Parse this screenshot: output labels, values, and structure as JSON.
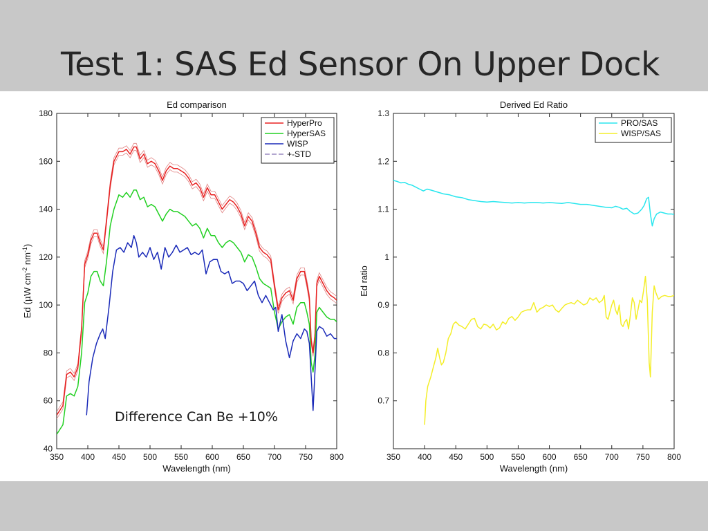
{
  "slide": {
    "title": "Test 1: SAS Ed Sensor On Upper Dock",
    "annotation": "Difference Can Be +10%"
  },
  "chart_data": [
    {
      "type": "line",
      "title": "Ed comparison",
      "xlabel": "Wavelength (nm)",
      "ylabel": "Ed (μW cm⁻² nm⁻¹)",
      "ylabel_parts": [
        "Ed (",
        "μ",
        "W cm",
        "-2",
        " nm",
        "-1",
        ")"
      ],
      "xlim": [
        350,
        800
      ],
      "ylim": [
        40,
        180
      ],
      "xticks": [
        350,
        400,
        450,
        500,
        550,
        600,
        650,
        700,
        750,
        800
      ],
      "yticks": [
        40,
        60,
        80,
        100,
        120,
        140,
        160,
        180
      ],
      "grid": false,
      "legend_position": "top-right",
      "legend": [
        {
          "name": "HyperPro",
          "color": "#e82020",
          "dash": false
        },
        {
          "name": "HyperSAS",
          "color": "#22d022",
          "dash": false
        },
        {
          "name": "WISP",
          "color": "#1a2ab8",
          "dash": false
        },
        {
          "name": "+-STD",
          "color": "#9a8ac0",
          "dash": true
        }
      ],
      "series": [
        {
          "name": "HyperPro",
          "color": "#e82020",
          "std": 1.5,
          "std_color": "#e08080",
          "x": [
            350,
            360,
            366,
            372,
            378,
            384,
            390,
            395,
            400,
            405,
            410,
            415,
            420,
            425,
            430,
            436,
            442,
            450,
            456,
            462,
            468,
            474,
            478,
            484,
            490,
            496,
            502,
            508,
            514,
            520,
            526,
            532,
            538,
            544,
            550,
            556,
            562,
            568,
            574,
            580,
            586,
            592,
            598,
            604,
            610,
            616,
            622,
            628,
            634,
            640,
            646,
            652,
            658,
            664,
            670,
            676,
            682,
            688,
            694,
            700,
            706,
            712,
            718,
            724,
            730,
            736,
            742,
            748,
            752,
            756,
            759,
            762,
            765,
            768,
            772,
            778,
            784,
            790,
            796,
            800
          ],
          "y": [
            54,
            58,
            71,
            72,
            70,
            74,
            90,
            117,
            121,
            127,
            130,
            130,
            126,
            123,
            135,
            150,
            160,
            164,
            164,
            165,
            163,
            166,
            166,
            161,
            163,
            159,
            160,
            159,
            156,
            152,
            156,
            158,
            157,
            157,
            156,
            155,
            153,
            150,
            151,
            149,
            145,
            149,
            146,
            146,
            143,
            140,
            142,
            144,
            143,
            141,
            138,
            133,
            137,
            135,
            130,
            124,
            122,
            121,
            119,
            108,
            98,
            103,
            105,
            106,
            102,
            111,
            114,
            114,
            109,
            103,
            85,
            80,
            87,
            109,
            112,
            109,
            106,
            104,
            103,
            102
          ]
        },
        {
          "name": "HyperSAS",
          "color": "#22d022",
          "x": [
            350,
            360,
            366,
            372,
            378,
            384,
            390,
            395,
            400,
            405,
            410,
            415,
            420,
            425,
            430,
            436,
            442,
            450,
            456,
            462,
            468,
            474,
            478,
            484,
            490,
            496,
            502,
            508,
            514,
            520,
            526,
            532,
            538,
            544,
            550,
            556,
            562,
            568,
            574,
            580,
            586,
            592,
            598,
            604,
            610,
            616,
            622,
            628,
            634,
            640,
            646,
            652,
            658,
            664,
            670,
            676,
            682,
            688,
            694,
            700,
            706,
            712,
            718,
            724,
            730,
            736,
            742,
            748,
            752,
            756,
            759,
            762,
            765,
            768,
            772,
            778,
            784,
            790,
            796,
            800
          ],
          "y": [
            46,
            50,
            62,
            63,
            62,
            66,
            80,
            101,
            105,
            112,
            114,
            114,
            110,
            108,
            118,
            133,
            140,
            146,
            145,
            147,
            145,
            148,
            148,
            144,
            145,
            141,
            142,
            141,
            138,
            135,
            138,
            140,
            139,
            139,
            138,
            137,
            135,
            133,
            134,
            132,
            128,
            132,
            129,
            129,
            126,
            124,
            126,
            127,
            126,
            124,
            122,
            118,
            121,
            120,
            116,
            111,
            109,
            108,
            107,
            97,
            90,
            93,
            95,
            96,
            92,
            99,
            101,
            101,
            97,
            92,
            76,
            72,
            79,
            97,
            99,
            97,
            95,
            94,
            94,
            93
          ]
        },
        {
          "name": "WISP",
          "color": "#1a2ab8",
          "x": [
            398,
            402,
            408,
            414,
            420,
            424,
            428,
            434,
            440,
            446,
            452,
            458,
            464,
            470,
            474,
            478,
            482,
            488,
            494,
            500,
            506,
            512,
            518,
            524,
            530,
            536,
            542,
            548,
            554,
            560,
            566,
            572,
            578,
            584,
            590,
            596,
            602,
            608,
            614,
            620,
            626,
            632,
            638,
            644,
            650,
            656,
            662,
            668,
            674,
            680,
            686,
            692,
            698,
            702,
            706,
            712,
            718,
            724,
            730,
            736,
            742,
            748,
            752,
            756,
            759,
            762,
            765,
            768,
            772,
            778,
            784,
            790,
            796,
            800
          ],
          "y": [
            54,
            68,
            78,
            84,
            88,
            90,
            86,
            99,
            114,
            123,
            124,
            122,
            126,
            124,
            129,
            126,
            120,
            122,
            120,
            124,
            119,
            122,
            115,
            124,
            120,
            122,
            125,
            122,
            123,
            124,
            121,
            122,
            121,
            123,
            113,
            118,
            119,
            119,
            114,
            113,
            114,
            109,
            110,
            110,
            109,
            106,
            108,
            110,
            104,
            101,
            104,
            101,
            98,
            99,
            89,
            96,
            85,
            78,
            85,
            88,
            86,
            90,
            89,
            84,
            70,
            56,
            72,
            89,
            91,
            90,
            87,
            88,
            86,
            86
          ]
        }
      ]
    },
    {
      "type": "line",
      "title": "Derived Ed Ratio",
      "xlabel": "Wavelength (nm)",
      "ylabel": "Ed ratio",
      "xlim": [
        350,
        800
      ],
      "ylim": [
        0.6,
        1.3
      ],
      "xticks": [
        350,
        400,
        450,
        500,
        550,
        600,
        650,
        700,
        750,
        800
      ],
      "yticks": [
        0.7,
        0.8,
        0.9,
        1,
        1.1,
        1.2,
        1.3
      ],
      "ytick_labels": [
        "0.7",
        "0.8",
        "0.9",
        "1",
        "1.1",
        "1.2",
        "1.3"
      ],
      "grid": false,
      "legend_position": "top-right",
      "legend": [
        {
          "name": "PRO/SAS",
          "color": "#28e6ee",
          "dash": false
        },
        {
          "name": "WISP/SAS",
          "color": "#f4ee28",
          "dash": false
        }
      ],
      "series": [
        {
          "name": "PRO/SAS",
          "color": "#28e6ee",
          "x": [
            350,
            356,
            362,
            368,
            374,
            380,
            386,
            392,
            398,
            404,
            410,
            420,
            430,
            440,
            450,
            460,
            470,
            480,
            490,
            500,
            510,
            520,
            530,
            540,
            550,
            560,
            570,
            580,
            590,
            600,
            610,
            620,
            630,
            640,
            650,
            660,
            670,
            680,
            690,
            700,
            706,
            712,
            718,
            724,
            730,
            736,
            742,
            748,
            752,
            756,
            759,
            762,
            765,
            768,
            772,
            778,
            784,
            790,
            796,
            800
          ],
          "y": [
            1.16,
            1.158,
            1.155,
            1.156,
            1.152,
            1.15,
            1.146,
            1.142,
            1.138,
            1.142,
            1.14,
            1.136,
            1.132,
            1.13,
            1.126,
            1.124,
            1.12,
            1.118,
            1.116,
            1.115,
            1.116,
            1.115,
            1.114,
            1.113,
            1.114,
            1.113,
            1.114,
            1.114,
            1.113,
            1.114,
            1.113,
            1.112,
            1.114,
            1.112,
            1.11,
            1.11,
            1.108,
            1.106,
            1.104,
            1.103,
            1.106,
            1.104,
            1.1,
            1.102,
            1.095,
            1.09,
            1.092,
            1.1,
            1.108,
            1.122,
            1.125,
            1.09,
            1.065,
            1.08,
            1.09,
            1.094,
            1.092,
            1.09,
            1.09,
            1.089
          ]
        },
        {
          "name": "WISP/SAS",
          "color": "#f4ee28",
          "x": [
            400,
            402,
            405,
            410,
            414,
            418,
            421,
            424,
            427,
            430,
            434,
            438,
            442,
            446,
            450,
            455,
            460,
            465,
            470,
            475,
            480,
            485,
            490,
            495,
            500,
            505,
            510,
            515,
            520,
            525,
            530,
            535,
            540,
            545,
            550,
            555,
            560,
            565,
            570,
            575,
            580,
            585,
            590,
            595,
            600,
            605,
            610,
            615,
            620,
            625,
            630,
            635,
            640,
            645,
            650,
            655,
            660,
            665,
            670,
            675,
            680,
            685,
            688,
            691,
            694,
            697,
            700,
            703,
            706,
            709,
            712,
            715,
            718,
            721,
            724,
            727,
            730,
            733,
            736,
            739,
            742,
            745,
            748,
            751,
            754,
            757,
            760,
            762,
            765,
            768,
            771,
            775,
            780,
            785,
            790,
            795,
            800
          ],
          "y": [
            0.65,
            0.7,
            0.73,
            0.75,
            0.77,
            0.79,
            0.81,
            0.79,
            0.775,
            0.78,
            0.8,
            0.83,
            0.84,
            0.86,
            0.865,
            0.858,
            0.855,
            0.85,
            0.86,
            0.87,
            0.872,
            0.855,
            0.85,
            0.86,
            0.858,
            0.852,
            0.86,
            0.848,
            0.852,
            0.865,
            0.86,
            0.872,
            0.876,
            0.868,
            0.875,
            0.885,
            0.888,
            0.89,
            0.89,
            0.905,
            0.885,
            0.892,
            0.895,
            0.9,
            0.897,
            0.9,
            0.89,
            0.885,
            0.893,
            0.9,
            0.903,
            0.905,
            0.902,
            0.91,
            0.905,
            0.9,
            0.903,
            0.915,
            0.91,
            0.915,
            0.905,
            0.91,
            0.92,
            0.875,
            0.87,
            0.885,
            0.9,
            0.91,
            0.89,
            0.88,
            0.9,
            0.86,
            0.855,
            0.865,
            0.87,
            0.85,
            0.88,
            0.915,
            0.905,
            0.87,
            0.89,
            0.91,
            0.905,
            0.93,
            0.96,
            0.91,
            0.78,
            0.75,
            0.885,
            0.94,
            0.925,
            0.912,
            0.918,
            0.92,
            0.918,
            0.918,
            0.92
          ]
        }
      ]
    }
  ]
}
